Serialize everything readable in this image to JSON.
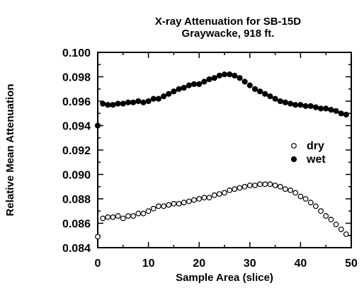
{
  "chart_data": {
    "type": "scatter",
    "title": "X-ray Attenuation for SB-15D",
    "subtitle": "Graywacke, 918 ft.",
    "xlabel": "Sample Area (slice)",
    "ylabel": "Relative Mean Attenuation",
    "xlim": [
      0,
      50
    ],
    "ylim": [
      0.084,
      0.1
    ],
    "xticks": [
      "0",
      "10",
      "20",
      "30",
      "40",
      "50"
    ],
    "yticks": [
      "0.084",
      "0.086",
      "0.088",
      "0.090",
      "0.092",
      "0.094",
      "0.096",
      "0.098",
      "0.100"
    ],
    "grid": false,
    "legend_position": "right-middle",
    "series": [
      {
        "name": "dry",
        "marker": "open-circle",
        "x": [
          0,
          1,
          2,
          3,
          4,
          5,
          6,
          7,
          8,
          9,
          10,
          11,
          12,
          13,
          14,
          15,
          16,
          17,
          18,
          19,
          20,
          21,
          22,
          23,
          24,
          25,
          26,
          27,
          28,
          29,
          30,
          31,
          32,
          33,
          34,
          35,
          36,
          37,
          38,
          39,
          40,
          41,
          42,
          43,
          44,
          45,
          46,
          47,
          48,
          49
        ],
        "values": [
          0.0849,
          0.0864,
          0.0865,
          0.0865,
          0.0866,
          0.0864,
          0.0866,
          0.0866,
          0.0868,
          0.0868,
          0.087,
          0.0872,
          0.0874,
          0.0874,
          0.0875,
          0.0876,
          0.0876,
          0.0877,
          0.0878,
          0.0879,
          0.088,
          0.0881,
          0.0881,
          0.0883,
          0.0884,
          0.0885,
          0.0887,
          0.0888,
          0.0889,
          0.089,
          0.0891,
          0.0891,
          0.0892,
          0.0892,
          0.0892,
          0.0891,
          0.089,
          0.0888,
          0.0887,
          0.0885,
          0.0882,
          0.088,
          0.0877,
          0.0874,
          0.087,
          0.0866,
          0.0863,
          0.0859,
          0.0855,
          0.0851
        ]
      },
      {
        "name": "wet",
        "marker": "filled-circle",
        "x": [
          0,
          1,
          2,
          3,
          4,
          5,
          6,
          7,
          8,
          9,
          10,
          11,
          12,
          13,
          14,
          15,
          16,
          17,
          18,
          19,
          20,
          21,
          22,
          23,
          24,
          25,
          26,
          27,
          28,
          29,
          30,
          31,
          32,
          33,
          34,
          35,
          36,
          37,
          38,
          39,
          40,
          41,
          42,
          43,
          44,
          45,
          46,
          47,
          48,
          49
        ],
        "values": [
          0.094,
          0.0958,
          0.0957,
          0.0957,
          0.0958,
          0.0958,
          0.0959,
          0.0959,
          0.096,
          0.0959,
          0.096,
          0.0962,
          0.0962,
          0.0964,
          0.0966,
          0.0968,
          0.097,
          0.0971,
          0.0973,
          0.0974,
          0.0974,
          0.0976,
          0.0978,
          0.0979,
          0.0981,
          0.0982,
          0.0982,
          0.0981,
          0.0979,
          0.0976,
          0.0973,
          0.097,
          0.0968,
          0.0966,
          0.0964,
          0.0962,
          0.096,
          0.0959,
          0.0958,
          0.0957,
          0.0957,
          0.0956,
          0.0956,
          0.0955,
          0.0954,
          0.0954,
          0.0953,
          0.0952,
          0.095,
          0.0949
        ]
      }
    ]
  }
}
